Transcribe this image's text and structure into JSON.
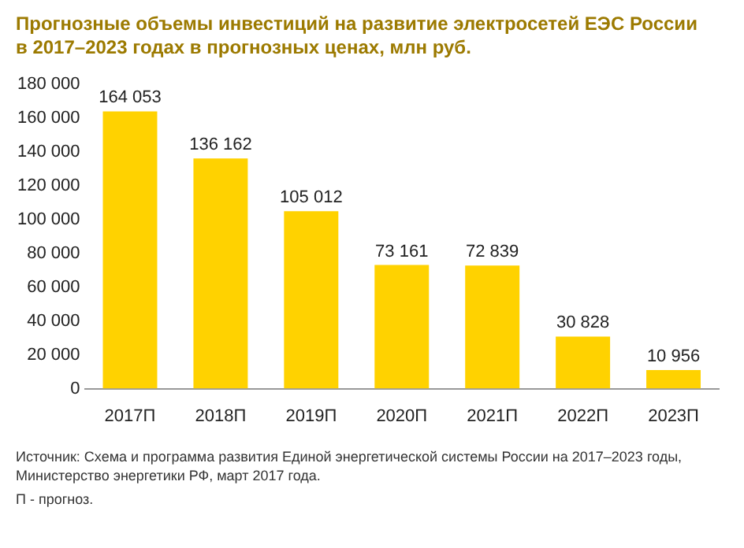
{
  "chart_data": {
    "type": "bar",
    "title": "Прогнозные объемы инвестиций на развитие электросетей ЕЭС России\nв 2017–2023 годах в прогнозных ценах, млн руб.",
    "categories": [
      "2017П",
      "2018П",
      "2019П",
      "2020П",
      "2021П",
      "2022П",
      "2023П"
    ],
    "values": [
      164053,
      136162,
      105012,
      73161,
      72839,
      30828,
      10956
    ],
    "value_labels": [
      "164 053",
      "136 162",
      "105 012",
      "73 161",
      "72 839",
      "30 828",
      "10 956"
    ],
    "color": "#ffd200",
    "ylim": [
      0,
      180000
    ],
    "yticks": [
      {
        "value": 0,
        "label": "0"
      },
      {
        "value": 20000,
        "label": "20 000"
      },
      {
        "value": 40000,
        "label": "40 000"
      },
      {
        "value": 60000,
        "label": "60 000"
      },
      {
        "value": 80000,
        "label": "80 000"
      },
      {
        "value": 100000,
        "label": "100 000"
      },
      {
        "value": 120000,
        "label": "120 000"
      },
      {
        "value": 140000,
        "label": "140 000"
      },
      {
        "value": 160000,
        "label": "160 000"
      },
      {
        "value": 180000,
        "label": "180 000"
      }
    ],
    "grid": false,
    "legend": false,
    "annotations": [
      "Источник: Схема и программа развития Единой энергетической системы России на 2017–2023 годы,\nМинистерство энергетики РФ, март 2017 года.",
      "П - прогноз."
    ]
  }
}
